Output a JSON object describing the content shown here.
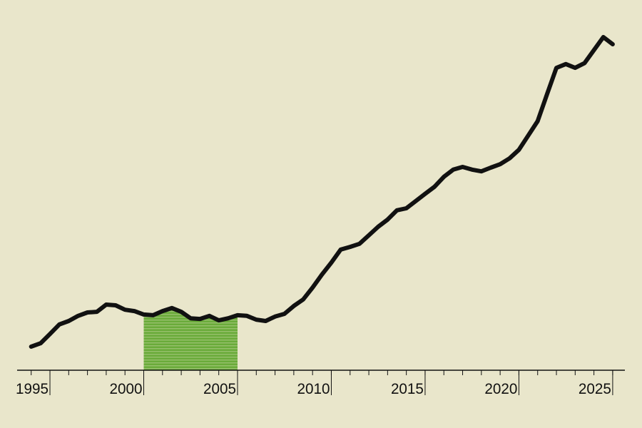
{
  "chart_data": {
    "type": "line",
    "x": [
      1994.0,
      1994.5,
      1995.0,
      1995.5,
      1996.0,
      1996.5,
      1997.0,
      1997.5,
      1998.0,
      1998.5,
      1999.0,
      1999.5,
      2000.0,
      2000.5,
      2001.0,
      2001.5,
      2002.0,
      2002.5,
      2003.0,
      2003.5,
      2004.0,
      2004.5,
      2005.0,
      2005.5,
      2006.0,
      2006.5,
      2007.0,
      2007.5,
      2008.0,
      2008.5,
      2009.0,
      2009.5,
      2010.0,
      2010.5,
      2011.0,
      2011.5,
      2012.0,
      2012.5,
      2013.0,
      2013.5,
      2014.0,
      2014.5,
      2015.0,
      2015.5,
      2016.0,
      2016.5,
      2017.0,
      2017.5,
      2018.0,
      2018.5,
      2019.0,
      2019.5,
      2020.0,
      2020.5,
      2021.0,
      2021.5,
      2022.0,
      2022.5,
      2023.0,
      2023.5,
      2024.0,
      2024.5,
      2025.0
    ],
    "values": [
      6.9,
      7.9,
      10.6,
      13.4,
      14.4,
      15.9,
      16.9,
      17.1,
      19.2,
      19.0,
      17.7,
      17.3,
      16.3,
      16.1,
      17.3,
      18.2,
      17.1,
      15.2,
      15.0,
      15.9,
      14.6,
      15.2,
      16.1,
      15.9,
      14.8,
      14.4,
      15.7,
      16.5,
      18.8,
      20.7,
      24.2,
      28.0,
      31.5,
      35.3,
      36.1,
      37.0,
      39.5,
      42.0,
      44.1,
      46.8,
      47.4,
      49.5,
      51.6,
      53.7,
      56.6,
      58.7,
      59.5,
      58.7,
      58.2,
      59.3,
      60.3,
      62.0,
      64.5,
      68.7,
      72.9,
      80.8,
      88.5,
      89.6,
      88.5,
      89.9,
      93.7,
      97.5,
      95.4
    ],
    "color": "#111111",
    "xlim": [
      1993.25,
      2025.65
    ],
    "ylim": [
      0,
      100
    ],
    "xticks": [
      1995,
      2000,
      2005,
      2010,
      2015,
      2020,
      2025
    ],
    "minor_xticks": [
      1994,
      1995,
      1996,
      1997,
      1998,
      1999,
      2000,
      2001,
      2002,
      2003,
      2004,
      2005,
      2006,
      2007,
      2008,
      2009,
      2010,
      2011,
      2012,
      2013,
      2014,
      2015,
      2016,
      2017,
      2018,
      2019,
      2020,
      2021,
      2022,
      2023,
      2024,
      2025
    ],
    "highlight": {
      "from": 2000,
      "to": 2005,
      "color": "#6aab3a"
    }
  }
}
